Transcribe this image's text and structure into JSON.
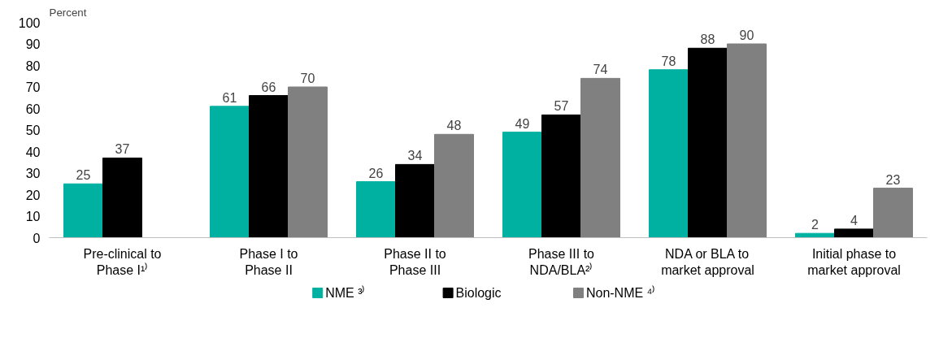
{
  "chart_data": {
    "type": "bar",
    "ylabel": "Percent",
    "categories": [
      "Pre-clinical to\nPhase I¹⁾",
      "Phase I to\nPhase II",
      "Phase II to\nPhase III",
      "Phase III to\nNDA/BLA²⁾",
      "NDA or BLA to\nmarket approval",
      "Initial phase to\nmarket approval"
    ],
    "series": [
      {
        "name": "NME ³⁾",
        "color": "#00b0a0",
        "values": [
          25,
          61,
          26,
          49,
          78,
          2
        ]
      },
      {
        "name": "Biologic",
        "color": "#000000",
        "values": [
          37,
          66,
          34,
          57,
          88,
          4
        ]
      },
      {
        "name": "Non-NME ⁴⁾",
        "color": "#808080",
        "values": [
          null,
          70,
          48,
          74,
          90,
          23
        ]
      }
    ],
    "ylim": [
      0,
      100
    ],
    "yticks": [
      0,
      10,
      20,
      30,
      40,
      50,
      60,
      70,
      80,
      90,
      100
    ],
    "grid": false,
    "legend": "bottom",
    "data_labels": true
  }
}
